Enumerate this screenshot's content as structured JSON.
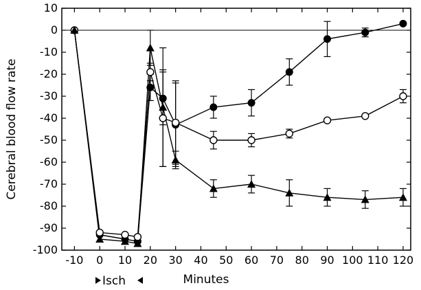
{
  "chart_data": {
    "type": "line",
    "title": "",
    "xlabel": "Minutes",
    "ylabel": "Cerebral blood flow rate",
    "annotation": "Isch",
    "xlim": [
      -15,
      123
    ],
    "ylim": [
      -100,
      10
    ],
    "xticks": [
      -10,
      0,
      10,
      20,
      30,
      40,
      50,
      60,
      70,
      80,
      90,
      100,
      110,
      120
    ],
    "yticks": [
      10,
      0,
      -10,
      -20,
      -30,
      -40,
      -50,
      -60,
      -70,
      -80,
      -90,
      -100
    ],
    "reference_line_y": 0,
    "grid": false,
    "legend": "none",
    "series": [
      {
        "marker": "filled-circle",
        "color": "#000000",
        "x": [
          -10,
          0,
          10,
          15,
          20,
          25,
          30,
          45,
          60,
          75,
          90,
          105,
          120
        ],
        "y": [
          0,
          -93,
          -95,
          -96,
          -26,
          -31,
          -43,
          -35,
          -33,
          -19,
          -4,
          -1,
          3
        ],
        "err": [
          0,
          0,
          0,
          0,
          6,
          12,
          19,
          5,
          6,
          6,
          8,
          2,
          0
        ]
      },
      {
        "marker": "open-circle",
        "color": "#000000",
        "x": [
          -10,
          0,
          10,
          15,
          20,
          25,
          30,
          45,
          60,
          75,
          90,
          105,
          120
        ],
        "y": [
          0,
          -92,
          -93,
          -94,
          -19,
          -40,
          -42,
          -50,
          -50,
          -47,
          -41,
          -39,
          -30
        ],
        "err": [
          0,
          0,
          0,
          0,
          4,
          22,
          19,
          4,
          3,
          2,
          0,
          0,
          3
        ]
      },
      {
        "marker": "filled-triangle",
        "color": "#000000",
        "x": [
          -10,
          0,
          10,
          15,
          20,
          25,
          30,
          45,
          60,
          75,
          90,
          105,
          120
        ],
        "y": [
          0,
          -95,
          -96,
          -97,
          -8,
          -35,
          -59,
          -72,
          -70,
          -74,
          -76,
          -77,
          -76
        ],
        "err": [
          0,
          0,
          0,
          0,
          8,
          27,
          4,
          4,
          4,
          6,
          4,
          4,
          4
        ]
      }
    ]
  }
}
